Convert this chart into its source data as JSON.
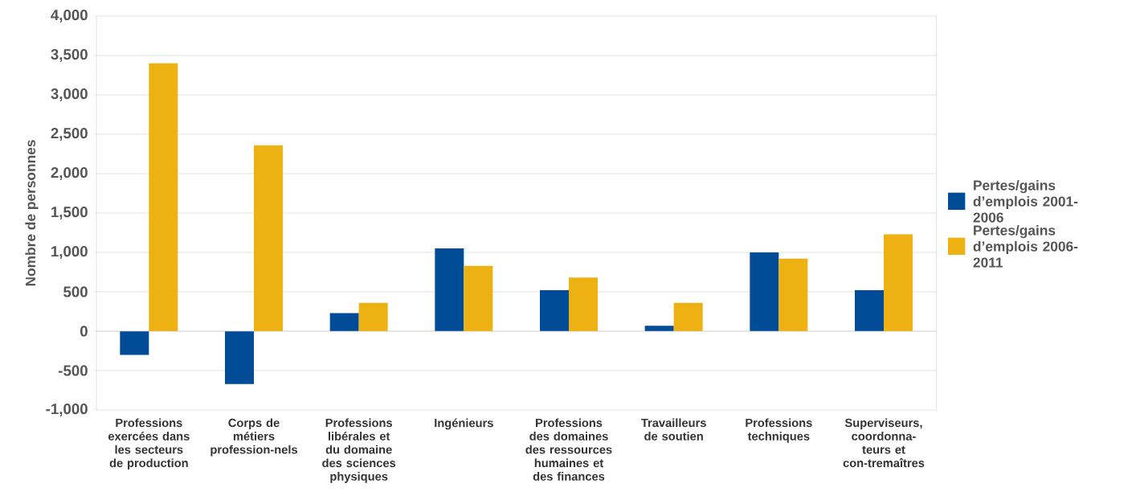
{
  "chart_data": {
    "type": "bar",
    "ylabel": "Nombre de personnes",
    "categories": [
      "Professions exercées dans les secteurs de production",
      "Corps de métiers profession-nels",
      "Professions libérales et du domaine des sciences physiques",
      "Ingénieurs",
      "Professions des domaines des ressources humaines et des finances",
      "Travailleurs de soutien",
      "Professions techniques",
      "Superviseurs, coordonna-teurs et con-tremaîtres"
    ],
    "series": [
      {
        "name": "Pertes/gains d’emplois 2001-2006",
        "color": "#004c97",
        "values": [
          -300,
          -670,
          230,
          1050,
          520,
          70,
          1000,
          520
        ]
      },
      {
        "name": "Pertes/gains d’emplois 2006-2011",
        "color": "#edb111",
        "values": [
          3400,
          2360,
          360,
          830,
          680,
          360,
          920,
          1230
        ]
      }
    ],
    "ylim": [
      -1000,
      4000
    ],
    "yticks": [
      {
        "value": -1000,
        "label": "-1,000"
      },
      -500,
      0,
      500,
      {
        "value": 1000,
        "label": "1,000"
      },
      {
        "value": 1500,
        "label": "1,500"
      },
      {
        "value": 2000,
        "label": "2,000"
      },
      {
        "value": 2500,
        "label": "2,500"
      },
      {
        "value": 3000,
        "label": "3,000"
      },
      {
        "value": 3500,
        "label": "3,500"
      },
      {
        "value": 4000,
        "label": "4,000"
      }
    ],
    "grid": "y",
    "legend": "right"
  }
}
